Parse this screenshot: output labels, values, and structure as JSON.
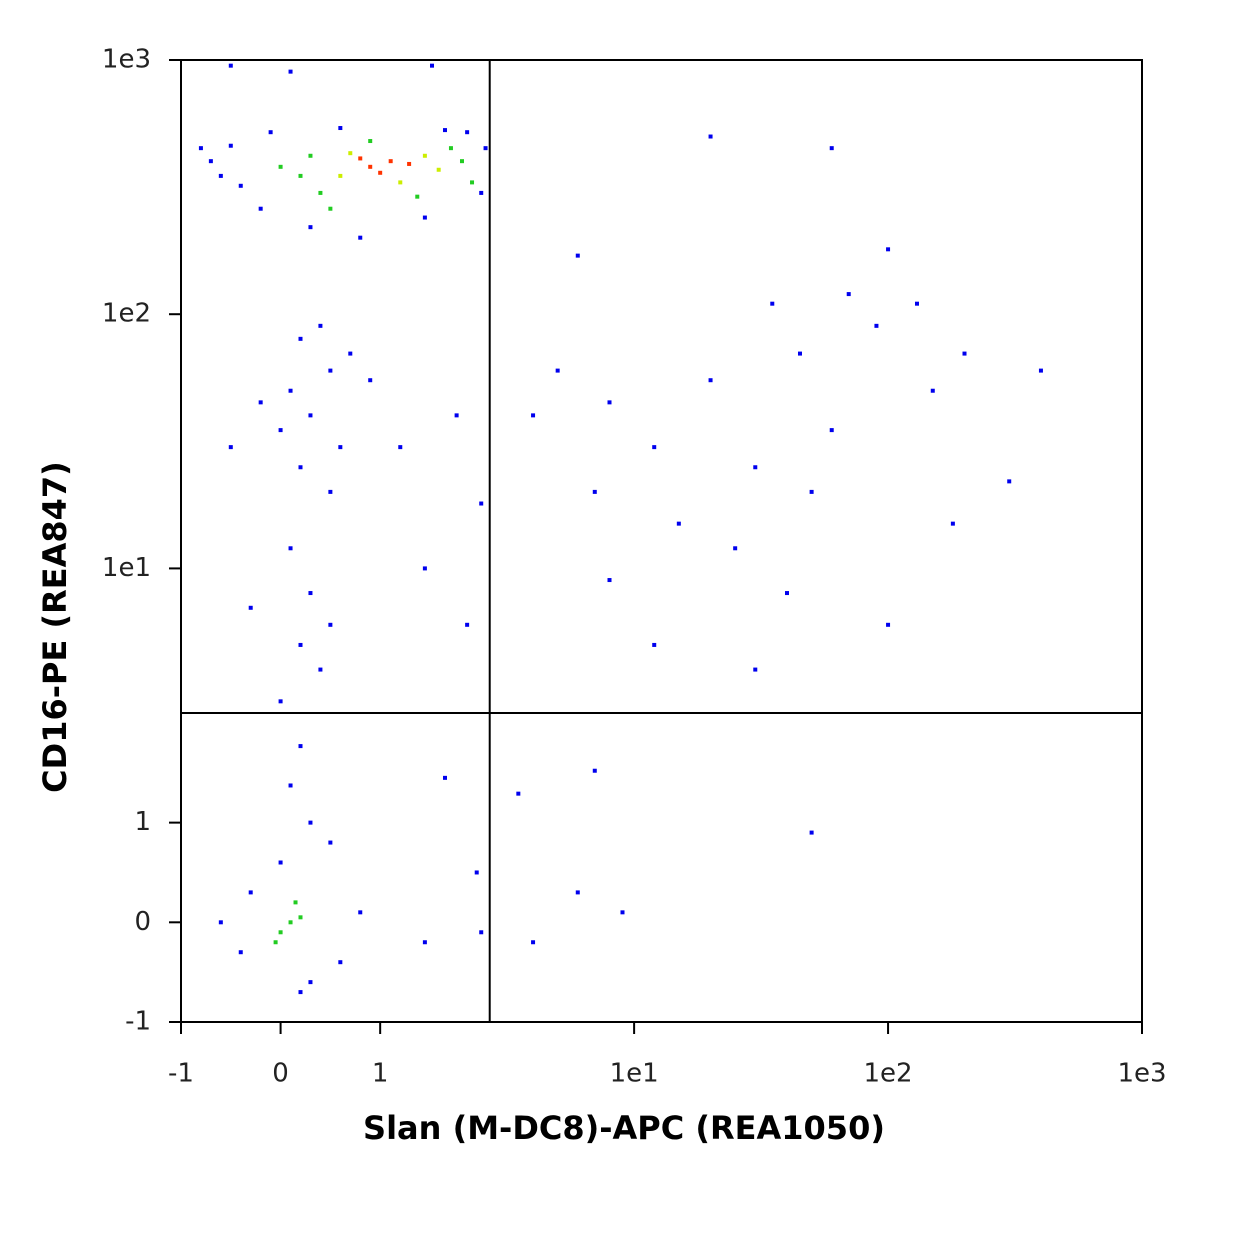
{
  "chart_data": {
    "type": "scatter",
    "xlabel": "Slan (M-DC8)-APC (REA1050)",
    "ylabel": "CD16-PE (REA847)",
    "xlim": [
      -1,
      1000
    ],
    "ylim": [
      -1,
      1000
    ],
    "xticks": [
      -1,
      0,
      1,
      {
        "value": 10,
        "label": "1e1"
      },
      {
        "value": 100,
        "label": "1e2"
      },
      {
        "value": 1000,
        "label": "1e3"
      }
    ],
    "yticks": [
      -1,
      0,
      1,
      {
        "value": 10,
        "label": "1e1"
      },
      {
        "value": 100,
        "label": "1e2"
      },
      {
        "value": 1000,
        "label": "1e3"
      }
    ],
    "gates": {
      "x": 2.7,
      "y": 2.7
    },
    "series": [
      {
        "color": "#0000ee",
        "x": [
          -0.7,
          -0.5,
          -0.4,
          -0.2,
          -0.6,
          2.6,
          2.5,
          2.2,
          0.6,
          1.8,
          0.3,
          0.8,
          1.5,
          -0.1,
          -0.8,
          0.1,
          -0.5,
          1.6,
          0.2,
          0.5,
          0.3,
          0.6,
          0.1,
          0.4,
          0.7,
          0.2,
          0.5,
          0.0,
          -0.2,
          0.9,
          1.2,
          2.0,
          2.5,
          -0.5,
          0.1,
          0.3,
          0.2,
          0.4,
          0.0,
          0.5,
          1.5,
          2.2,
          -0.3,
          0.2,
          0.1,
          0.3,
          0.0,
          0.5,
          1.8,
          2.4,
          -0.4,
          0.6,
          0.3,
          -0.3,
          0.8,
          1.5,
          2.5,
          -0.6,
          0.2,
          5,
          8,
          12,
          20,
          30,
          45,
          60,
          90,
          150,
          200,
          400,
          300,
          7,
          15,
          25,
          40,
          100,
          12,
          30,
          6,
          20,
          60,
          100,
          8,
          50,
          180,
          4,
          35,
          70,
          130,
          7,
          50,
          6,
          9,
          4,
          3.5
        ],
        "y": [
          400,
          460,
          320,
          260,
          350,
          450,
          300,
          520,
          540,
          530,
          220,
          200,
          240,
          520,
          450,
          900,
          950,
          950,
          80,
          60,
          40,
          30,
          50,
          90,
          70,
          25,
          20,
          35,
          45,
          55,
          30,
          40,
          18,
          30,
          12,
          8,
          5,
          4,
          3,
          6,
          10,
          6,
          7,
          2,
          1.4,
          1,
          0.6,
          0.8,
          1.5,
          0.5,
          -0.3,
          -0.4,
          -0.6,
          0.3,
          0.1,
          -0.2,
          -0.1,
          0.0,
          -0.7,
          60,
          45,
          30,
          55,
          25,
          70,
          35,
          90,
          50,
          70,
          60,
          22,
          20,
          15,
          12,
          8,
          6,
          5,
          4,
          170,
          500,
          450,
          180,
          9,
          20,
          15,
          40,
          110,
          120,
          110,
          1.6,
          0.9,
          0.3,
          0.1,
          -0.2,
          1.3
        ]
      },
      {
        "color": "#22cc22",
        "x": [
          0.2,
          0.4,
          0.3,
          1.9,
          2.1,
          0.5,
          1.4,
          0.0,
          2.3,
          0.9,
          0.1,
          0.0,
          0.2,
          0.15,
          -0.05
        ],
        "y": [
          350,
          300,
          420,
          450,
          400,
          260,
          290,
          380,
          330,
          480,
          0,
          -0.1,
          0.05,
          0.2,
          -0.2
        ]
      },
      {
        "color": "#ccee00",
        "x": [
          0.6,
          1.5,
          0.7,
          1.2,
          1.7
        ],
        "y": [
          350,
          420,
          430,
          330,
          370
        ]
      },
      {
        "color": "#ff3300",
        "x": [
          0.9,
          1.1,
          1.0,
          1.3,
          0.8
        ],
        "y": [
          380,
          400,
          360,
          390,
          410
        ]
      }
    ]
  }
}
